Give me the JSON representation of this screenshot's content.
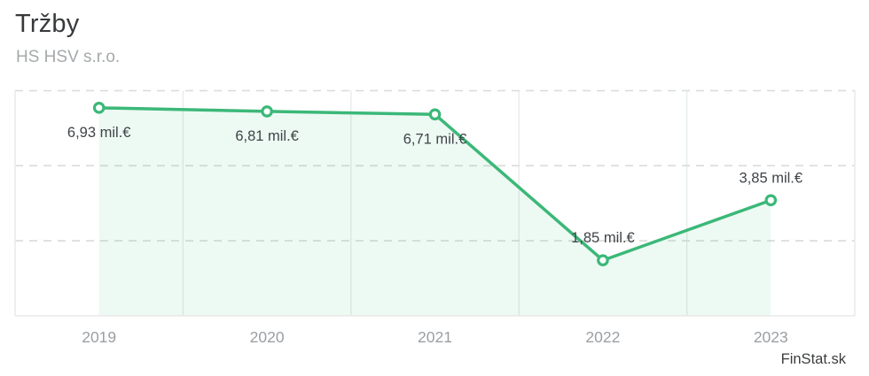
{
  "header": {
    "title": "Tržby",
    "subtitle": "HS HSV s.r.o."
  },
  "footer": {
    "brand": "FinStat.sk"
  },
  "chart_data": {
    "type": "line",
    "title": "Tržby",
    "subtitle": "HS HSV s.r.o.",
    "categories": [
      "2019",
      "2020",
      "2021",
      "2022",
      "2023"
    ],
    "values": [
      6.93,
      6.81,
      6.71,
      1.85,
      3.85
    ],
    "point_labels": [
      "6,93 mil.€",
      "6,81 mil.€",
      "6,71 mil.€",
      "1,85 mil.€",
      "3,85 mil.€"
    ],
    "label_positions": [
      "below",
      "below",
      "below",
      "above",
      "above"
    ],
    "unit": "mil.€",
    "xlabel": "",
    "ylabel": "",
    "ylim": [
      0,
      7.5
    ],
    "yticks": [
      2.5,
      5,
      7.5
    ],
    "grid": {
      "horizontal": "dashed",
      "vertical": "solid column separators"
    },
    "legend": "none",
    "area_fill": "rgba(59,184,120,0.09)",
    "line_color": "#3bb878",
    "marker_fill": "#ffffff",
    "marker_stroke": "#3bb878",
    "separator_color": "#e4ece7",
    "dash_color": "#d8dbd9",
    "border_color": "#e8eae9",
    "point_label_color": "#404449",
    "axis_label_color": "#9b9fa3"
  }
}
